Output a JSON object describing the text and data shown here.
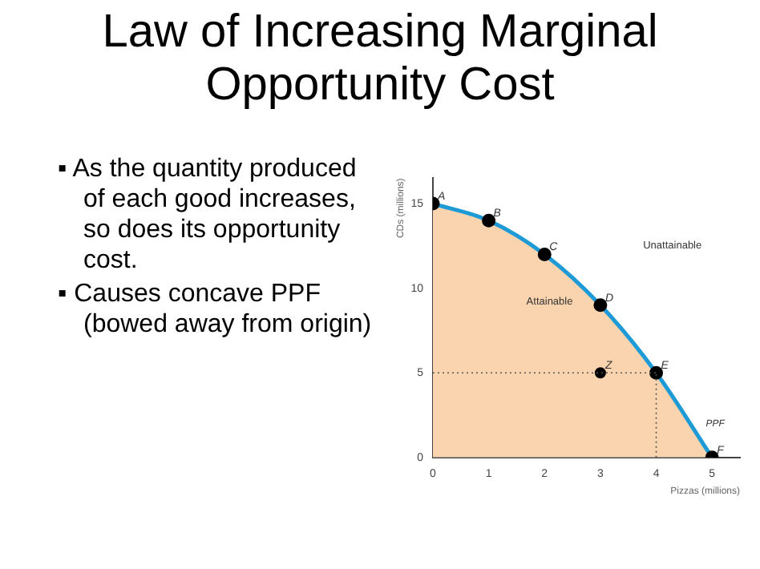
{
  "chart_data": {
    "type": "area",
    "title": "Law of Increasing Marginal Opportunity Cost",
    "xlabel": "Pizzas (millions)",
    "ylabel": "CDs (millions)",
    "x": [
      0,
      1,
      2,
      3,
      4,
      5
    ],
    "series": [
      {
        "name": "PPF",
        "color": "#fad4ae",
        "values": [
          15,
          14,
          12,
          9,
          5,
          0
        ]
      },
      {
        "type": "scatter",
        "color": "#000000",
        "x": [
          3
        ],
        "values": [
          5
        ]
      }
    ],
    "xlim": [
      0,
      5.5
    ],
    "ylim": [
      0,
      16.5
    ],
    "xticks": [
      0,
      1,
      2,
      3,
      4,
      5
    ],
    "yticks": [
      0,
      5,
      10,
      15
    ],
    "ref_lines": [
      {
        "axis": "y",
        "value": 5,
        "line_style": "dotted"
      },
      {
        "axis": "x",
        "value": 4,
        "line_style": "dotted"
      }
    ],
    "annotations": [
      "▪ As the quantity produced of each good increases, so does its opportunity cost.",
      "▪ Causes concave PPF (bowed away from origin)",
      "Attainable",
      "Unattainable",
      {
        "text": "A",
        "x": 0,
        "y": 15
      },
      {
        "text": "B",
        "x": 1,
        "y": 14
      },
      {
        "text": "C",
        "x": 2,
        "y": 12
      },
      {
        "text": "D",
        "x": 3,
        "y": 9
      },
      {
        "text": "E",
        "x": 4,
        "y": 5
      },
      {
        "text": "F",
        "x": 5,
        "y": 0
      },
      {
        "text": "Z",
        "x": 3,
        "y": 5
      }
    ],
    "marker": "circle",
    "grid": false,
    "legend": false
  }
}
